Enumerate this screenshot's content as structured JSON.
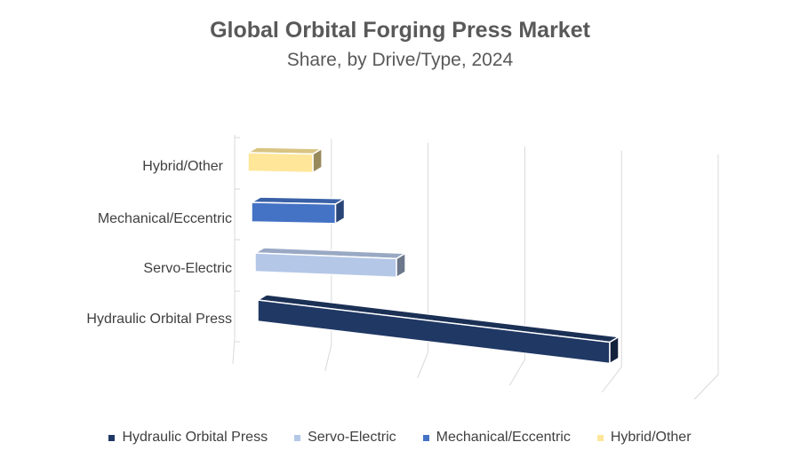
{
  "chart_data": {
    "type": "bar",
    "orientation": "horizontal",
    "style": "3d",
    "title": "Global Orbital Forging Press Market",
    "subtitle": "Share, by Drive/Type, 2024",
    "xlabel": "",
    "ylabel": "",
    "grid": true,
    "legend_position": "bottom",
    "xlim": [
      0,
      100
    ],
    "categories": [
      "Hydraulic Orbital Press",
      "Servo-Electric",
      "Mechanical/Eccentric",
      "Hybrid/Other"
    ],
    "values": [
      55,
      22,
      13,
      10
    ],
    "colors": [
      "#203864",
      "#B4C7E7",
      "#4472C4",
      "#FFE699"
    ],
    "legend": [
      "Hydraulic Orbital Press",
      "Servo-Electric",
      "Mechanical/Eccentric",
      "Hybrid/Other"
    ]
  }
}
